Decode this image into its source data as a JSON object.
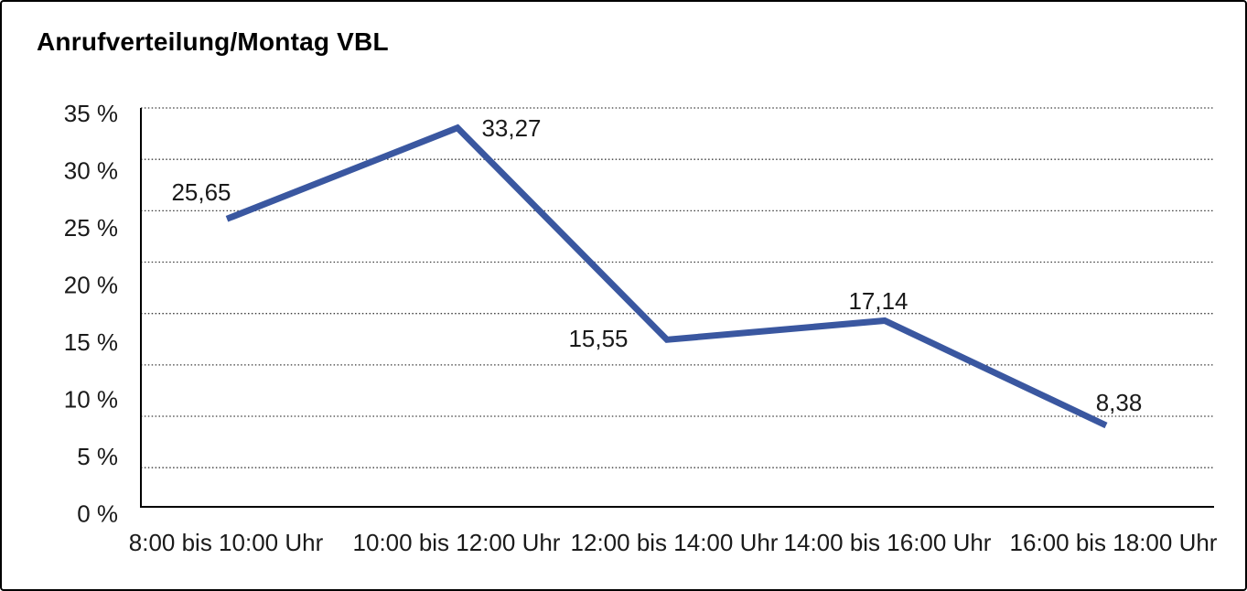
{
  "title": "Anrufverteilung/Montag VBL",
  "chart_data": {
    "type": "line",
    "title": "Anrufverteilung/Montag VBL",
    "categories": [
      "8:00 bis 10:00 Uhr",
      "10:00 bis 12:00 Uhr",
      "12:00 bis 14:00 Uhr",
      "14:00 bis 16:00 Uhr",
      "16:00 bis 18:00 Uhr"
    ],
    "series": [
      {
        "values": [
          25.65,
          33.27,
          15.55,
          17.14,
          8.38
        ]
      }
    ],
    "value_labels": [
      "25,65",
      "33,27",
      "15,55",
      "17,14",
      "8,38"
    ],
    "y_tick_labels": [
      "35 %",
      "30 %",
      "25 %",
      "20 %",
      "15 %",
      "10 %",
      "5 %",
      "0 %"
    ],
    "xlabel": "",
    "ylabel": "",
    "ylim": [
      0,
      35
    ],
    "y_tick_step": 5,
    "grid": "horizontal-dotted",
    "legend": "none",
    "line_color": "#3A57A0",
    "axis_color": "#000000"
  }
}
